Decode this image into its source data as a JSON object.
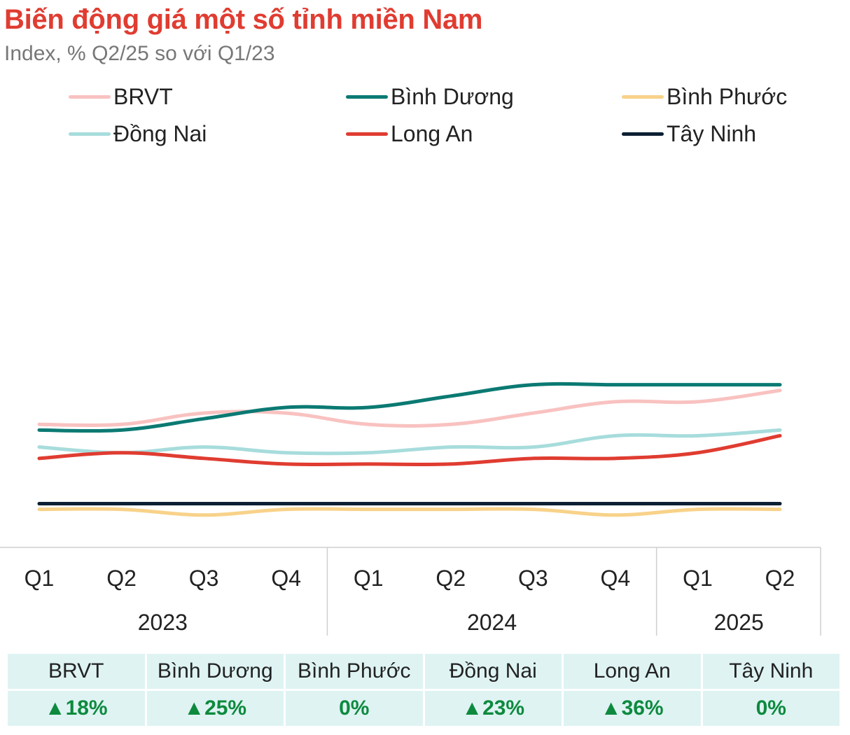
{
  "header": {
    "title": "Biến động giá một số tỉnh miền Nam",
    "subtitle": "Index, % Q2/25 so với Q1/23"
  },
  "chart_data": {
    "type": "line",
    "title": "Biến động giá một số tỉnh miền Nam",
    "subtitle": "Index, % Q2/25 so với Q1/23",
    "x": [
      "Q1",
      "Q2",
      "Q3",
      "Q4",
      "Q1",
      "Q2",
      "Q3",
      "Q4",
      "Q1",
      "Q2"
    ],
    "year_groups": [
      {
        "label": "2023",
        "start": 0,
        "end": 3
      },
      {
        "label": "2024",
        "start": 4,
        "end": 7
      },
      {
        "label": "2025",
        "start": 8,
        "end": 9
      }
    ],
    "ylim": [
      -5,
      50
    ],
    "grid": false,
    "legend_position": "top",
    "series": [
      {
        "name": "BRVT",
        "color": "#f8c2c0",
        "values": [
          14,
          14,
          16,
          16,
          14,
          14,
          16,
          18,
          18,
          20
        ]
      },
      {
        "name": "Bình Dương",
        "color": "#0b7a73",
        "values": [
          13,
          13,
          15,
          17,
          17,
          19,
          21,
          21,
          21,
          21
        ]
      },
      {
        "name": "Bình Phước",
        "color": "#f8d28a",
        "values": [
          -1,
          -1,
          -2,
          -1,
          -1,
          -1,
          -1,
          -2,
          -1,
          -1
        ]
      },
      {
        "name": "Đồng Nai",
        "color": "#a7dcdc",
        "values": [
          10,
          9,
          10,
          9,
          9,
          10,
          10,
          12,
          12,
          13
        ]
      },
      {
        "name": "Long An",
        "color": "#e03c31",
        "values": [
          8,
          9,
          8,
          7,
          7,
          7,
          8,
          8,
          9,
          12
        ]
      },
      {
        "name": "Tây Ninh",
        "color": "#0c1f33",
        "values": [
          0,
          0,
          0,
          0,
          0,
          0,
          0,
          0,
          0,
          0
        ]
      }
    ]
  },
  "summary": {
    "columns": [
      "BRVT",
      "Bình Dương",
      "Bình Phước",
      "Đồng Nai",
      "Long An",
      "Tây Ninh"
    ],
    "values": [
      "▲18%",
      "▲25%",
      "0%",
      "▲23%",
      "▲36%",
      "0%"
    ]
  }
}
